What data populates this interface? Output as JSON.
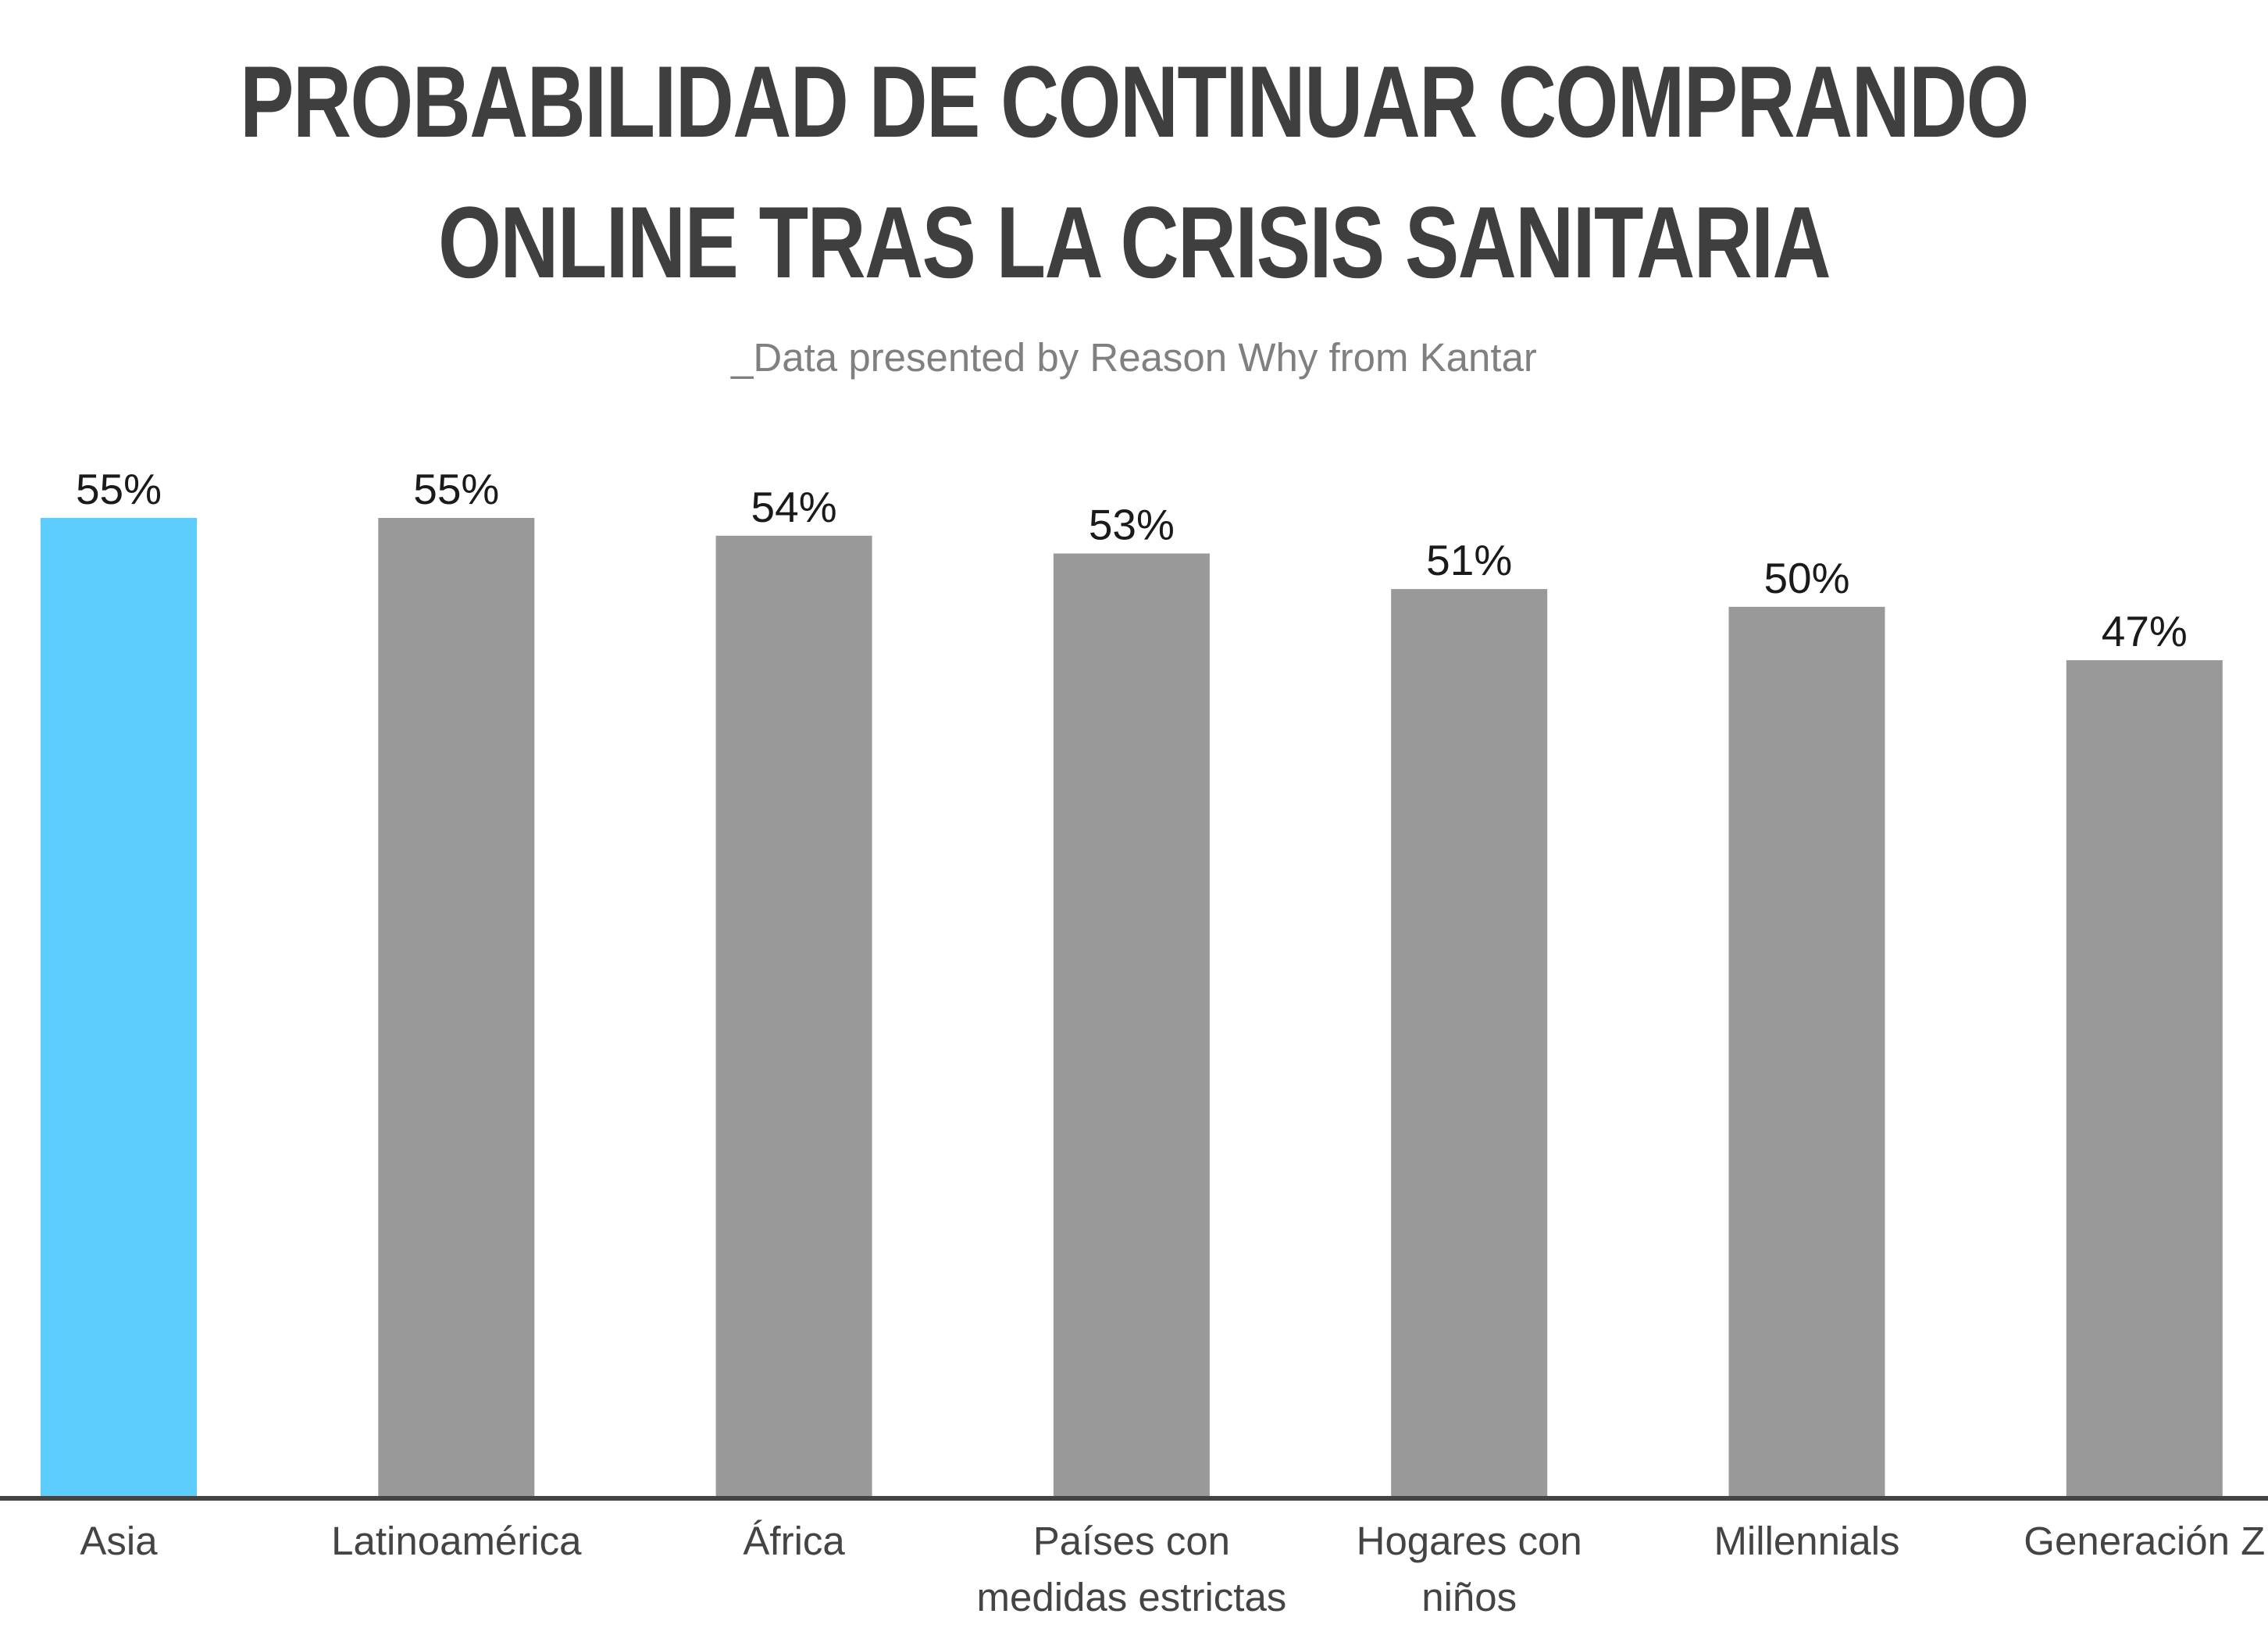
{
  "title": {
    "line1": "PROBABILIDAD DE CONTINUAR COMPRANDO",
    "line2": "ONLINE TRAS LA CRISIS SANITARIA"
  },
  "subtitle": "_Data presented by Reason Why from Kantar",
  "colors": {
    "highlight": "#5ccdfd",
    "bar": "#999999",
    "axis": "#444444"
  },
  "chart_data": {
    "type": "bar",
    "categories": [
      [
        "Asia"
      ],
      [
        "Latinoamérica"
      ],
      [
        "África"
      ],
      [
        "Países con",
        "medidas estrictas"
      ],
      [
        "Hogares con",
        "niños"
      ],
      [
        "Millennials"
      ],
      [
        "Generación Z"
      ]
    ],
    "values": [
      55,
      55,
      54,
      53,
      51,
      50,
      47
    ],
    "value_labels": [
      "55%",
      "55%",
      "54%",
      "53%",
      "51%",
      "50%",
      "47%"
    ],
    "highlight_index": 0,
    "ylim": [
      0,
      55
    ],
    "grid": false,
    "legend": "none"
  }
}
